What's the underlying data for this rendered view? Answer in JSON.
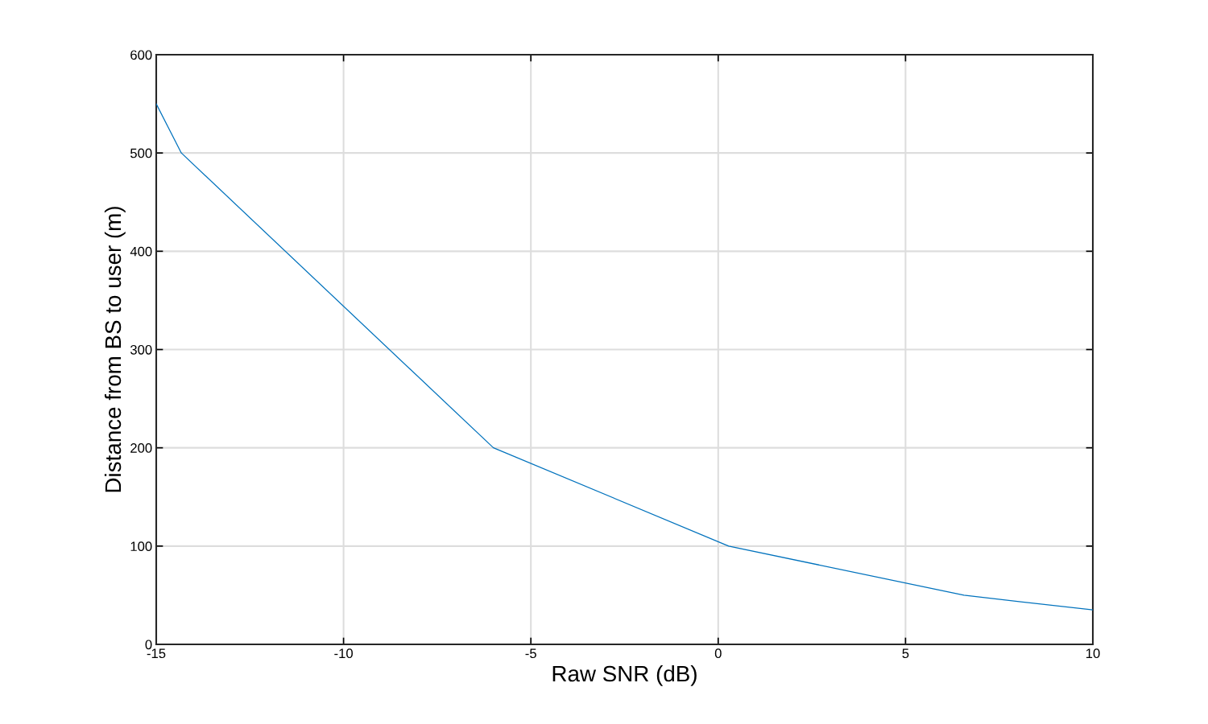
{
  "chart_data": {
    "type": "line",
    "xlabel": "Raw SNR (dB)",
    "ylabel": "Distance from BS to user (m)",
    "x": [
      -15,
      -14.33,
      -6,
      0.28,
      6.56,
      10
    ],
    "series": [
      {
        "color": "#0072bd",
        "values": [
          550,
          500,
          200,
          100,
          50,
          35
        ]
      }
    ],
    "xlim": [
      -15,
      10
    ],
    "xticks": [
      -15,
      -10,
      -5,
      0,
      5,
      10
    ],
    "ylim": [
      0,
      600
    ],
    "yticks": [
      0,
      100,
      200,
      300,
      400,
      500,
      600
    ],
    "grid": true,
    "marker": "none",
    "line_style": "solid"
  }
}
